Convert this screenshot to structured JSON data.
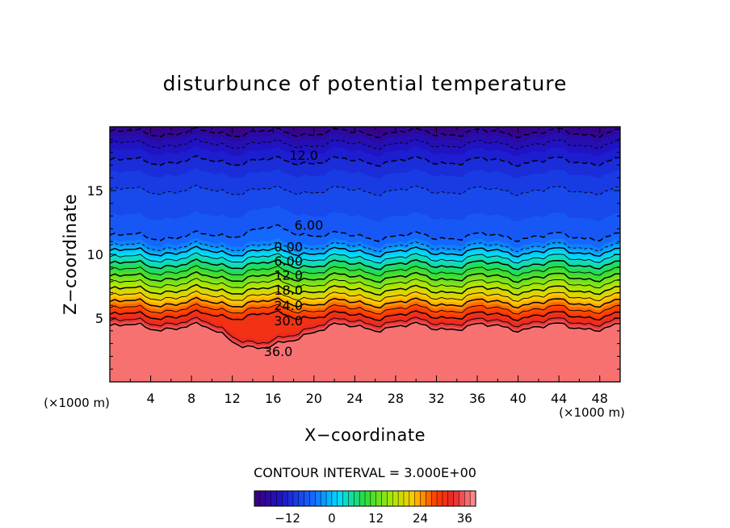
{
  "chart_data": {
    "type": "heatmap",
    "title": "disturbunce of potential temperature",
    "xlabel": "X−coordinate",
    "ylabel": "Z−coordinate",
    "x_unit": "(×1000 m)",
    "y_unit": "(×1000 m)",
    "xlim": [
      0,
      50
    ],
    "ylim": [
      0,
      20
    ],
    "xticks": [
      4,
      8,
      12,
      16,
      20,
      24,
      28,
      32,
      36,
      40,
      44,
      48
    ],
    "yticks": [
      5,
      10,
      15
    ],
    "contour_interval_label": "CONTOUR INTERVAL = 3.000E+00",
    "colorbar": {
      "min": -21,
      "max": 39,
      "step": 3,
      "ticks": [
        -12,
        0,
        12,
        24,
        36
      ]
    },
    "field_profile": {
      "z": [
        0,
        4.3,
        4.7,
        5.2,
        5.7,
        6.2,
        6.7,
        7.2,
        7.7,
        8.2,
        8.7,
        9.2,
        9.7,
        10.2,
        10.6,
        11.0,
        11.4,
        11.8,
        12.4,
        13.5,
        15.0,
        16.0,
        17.3,
        18.3,
        19.3,
        20.0
      ],
      "theta": [
        37,
        36,
        33,
        30,
        27,
        24,
        21,
        18,
        15,
        12,
        9,
        6,
        3,
        0,
        -3,
        -5,
        -6,
        -6.5,
        -7,
        -8,
        -9,
        -10,
        -12,
        -14,
        -17,
        -20
      ]
    },
    "contour_labels": [
      {
        "text": "12.0",
        "x": 19,
        "y": 17.8
      },
      {
        "text": "6.00",
        "x": 19.5,
        "y": 12.3
      },
      {
        "text": "0.00",
        "x": 17.5,
        "y": 10.6
      },
      {
        "text": "6.00",
        "x": 17.5,
        "y": 9.5
      },
      {
        "text": "12.0",
        "x": 17.5,
        "y": 8.4
      },
      {
        "text": "18.0",
        "x": 17.5,
        "y": 7.2
      },
      {
        "text": "24.0",
        "x": 17.5,
        "y": 6.0
      },
      {
        "text": "30.0",
        "x": 17.5,
        "y": 4.8
      },
      {
        "text": "36.0",
        "x": 16.5,
        "y": 2.4
      }
    ]
  }
}
